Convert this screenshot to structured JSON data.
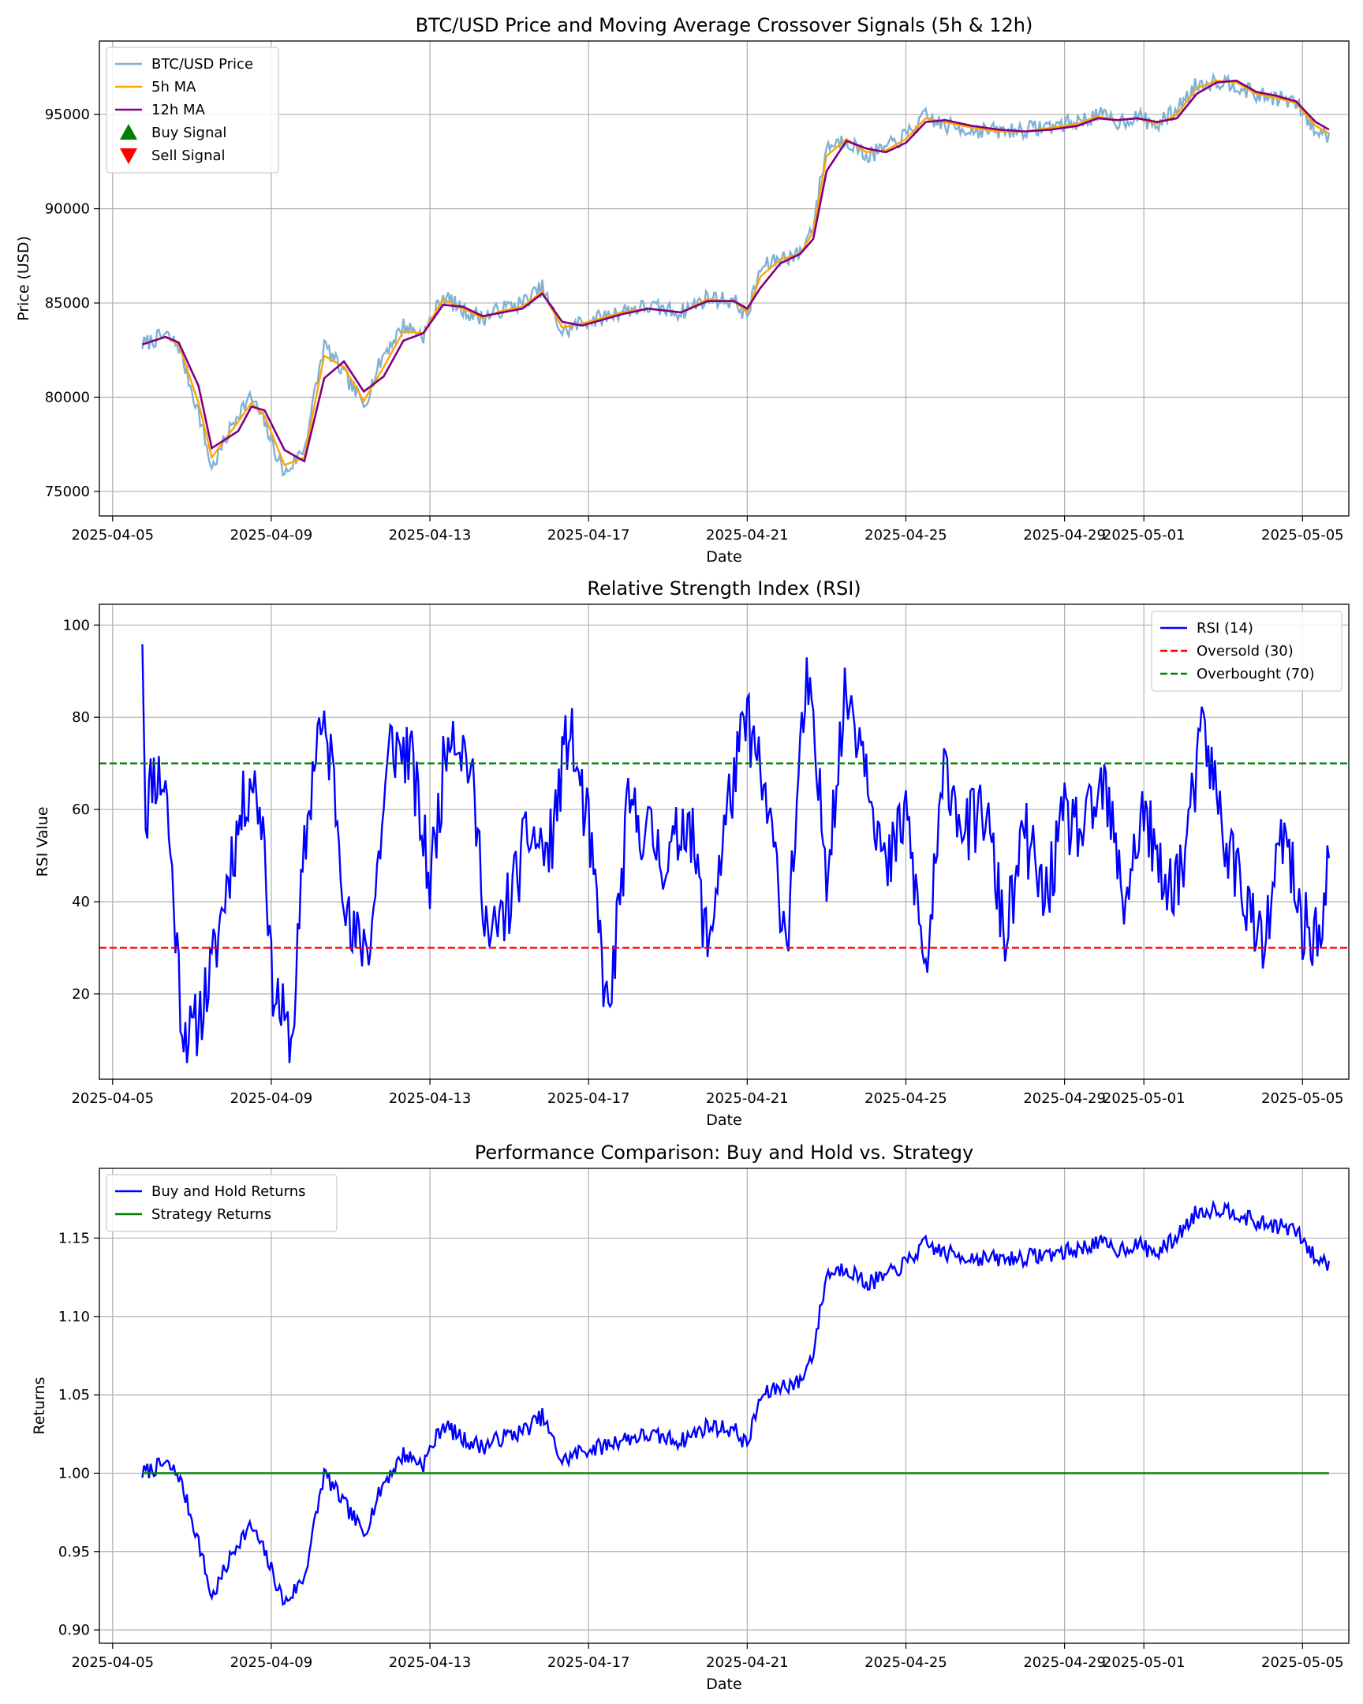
{
  "figure": {
    "background": "#ffffff"
  },
  "chart_data": [
    {
      "type": "line",
      "title": "BTC/USD Price and Moving Average Crossover Signals (5h & 12h)",
      "xlabel": "Date",
      "ylabel": "Price (USD)",
      "xlim": [
        "2025-04-04T16:00",
        "2025-05-06T04:00"
      ],
      "ylim": [
        73700,
        98900
      ],
      "grid": true,
      "legend_position": "upper-left",
      "xticks": [
        "2025-04-05",
        "2025-04-09",
        "2025-04-13",
        "2025-04-17",
        "2025-04-21",
        "2025-04-25",
        "2025-04-29",
        "2025-05-01",
        "2025-05-05"
      ],
      "yticks": [
        75000,
        80000,
        85000,
        90000,
        95000
      ],
      "keypoints_x": [
        "2025-04-05T18:00",
        "2025-04-06T08:00",
        "2025-04-06T16:00",
        "2025-04-07T04:00",
        "2025-04-07T12:00",
        "2025-04-08T04:00",
        "2025-04-08T12:00",
        "2025-04-08T20:00",
        "2025-04-09T08:00",
        "2025-04-09T20:00",
        "2025-04-10T08:00",
        "2025-04-10T20:00",
        "2025-04-11T08:00",
        "2025-04-11T20:00",
        "2025-04-12T08:00",
        "2025-04-12T20:00",
        "2025-04-13T08:00",
        "2025-04-13T20:00",
        "2025-04-14T08:00",
        "2025-04-14T20:00",
        "2025-04-15T08:00",
        "2025-04-15T20:00",
        "2025-04-16T08:00",
        "2025-04-16T20:00",
        "2025-04-17T08:00",
        "2025-04-17T20:00",
        "2025-04-18T12:00",
        "2025-04-19T08:00",
        "2025-04-20T00:00",
        "2025-04-20T16:00",
        "2025-04-21T00:00",
        "2025-04-21T08:00",
        "2025-04-21T20:00",
        "2025-04-22T08:00",
        "2025-04-22T16:00",
        "2025-04-23T00:00",
        "2025-04-23T12:00",
        "2025-04-24T00:00",
        "2025-04-24T12:00",
        "2025-04-25T00:00",
        "2025-04-25T12:00",
        "2025-04-26T00:00",
        "2025-04-26T16:00",
        "2025-04-27T08:00",
        "2025-04-28T00:00",
        "2025-04-28T16:00",
        "2025-04-29T08:00",
        "2025-04-29T20:00",
        "2025-04-30T08:00",
        "2025-04-30T20:00",
        "2025-05-01T08:00",
        "2025-05-01T20:00",
        "2025-05-02T08:00",
        "2025-05-02T20:00",
        "2025-05-03T08:00",
        "2025-05-03T20:00",
        "2025-05-04T08:00",
        "2025-05-04T20:00",
        "2025-05-05T08:00",
        "2025-05-05T16:00"
      ],
      "keypoints_price": [
        82800,
        83300,
        82700,
        79200,
        76200,
        79200,
        80000,
        78600,
        75900,
        77300,
        82800,
        81200,
        79600,
        82300,
        83800,
        83300,
        85400,
        84600,
        84200,
        84700,
        85000,
        85800,
        83400,
        84000,
        84200,
        84600,
        84800,
        84500,
        85300,
        85100,
        84300,
        86800,
        87400,
        87600,
        89200,
        93300,
        93700,
        92800,
        93200,
        93900,
        94900,
        94400,
        94200,
        94100,
        94200,
        94400,
        94600,
        95000,
        94600,
        94900,
        94400,
        95300,
        96600,
        96800,
        96600,
        96000,
        95900,
        95600,
        94100,
        93900
      ],
      "keypoints_ma5": [
        82800,
        83200,
        82800,
        79700,
        76800,
        78700,
        79700,
        79000,
        76400,
        76800,
        82200,
        81600,
        79800,
        81600,
        83500,
        83400,
        85200,
        84700,
        84200,
        84600,
        84800,
        85600,
        83700,
        83900,
        84200,
        84500,
        84700,
        84500,
        85200,
        85100,
        84500,
        86400,
        87300,
        87600,
        88800,
        92800,
        93700,
        93000,
        93100,
        93700,
        94800,
        94600,
        94300,
        94100,
        94100,
        94300,
        94500,
        94900,
        94700,
        94800,
        94500,
        95000,
        96400,
        96800,
        96700,
        96100,
        95900,
        95600,
        94400,
        94000
      ],
      "keypoints_ma12": [
        82800,
        83200,
        82900,
        80600,
        77300,
        78200,
        79500,
        79300,
        77200,
        76600,
        81000,
        81900,
        80300,
        81100,
        83000,
        83400,
        84900,
        84800,
        84300,
        84500,
        84700,
        85500,
        84000,
        83800,
        84100,
        84400,
        84700,
        84500,
        85100,
        85100,
        84700,
        85800,
        87100,
        87600,
        88400,
        92000,
        93600,
        93200,
        93000,
        93500,
        94600,
        94700,
        94400,
        94200,
        94100,
        94200,
        94400,
        94800,
        94700,
        94800,
        94600,
        94800,
        96100,
        96700,
        96800,
        96200,
        96000,
        95700,
        94600,
        94200
      ],
      "series": [
        {
          "name": "BTC/USD Price",
          "color": "#7fb2d5",
          "role": "price"
        },
        {
          "name": "5h MA",
          "color": "#ffa500",
          "role": "ma5"
        },
        {
          "name": "12h MA",
          "color": "#800080",
          "role": "ma12"
        },
        {
          "name": "Buy Signal",
          "color": "#008000",
          "role": "marker-up",
          "points": []
        },
        {
          "name": "Sell Signal",
          "color": "#ff0000",
          "role": "marker-down",
          "points": []
        }
      ]
    },
    {
      "type": "line",
      "title": "Relative Strength Index (RSI)",
      "xlabel": "Date",
      "ylabel": "RSI Value",
      "xlim": [
        "2025-04-04T16:00",
        "2025-05-06T04:00"
      ],
      "ylim": [
        1.5,
        104.5
      ],
      "grid": true,
      "legend_position": "upper-right",
      "xticks": [
        "2025-04-05",
        "2025-04-09",
        "2025-04-13",
        "2025-04-17",
        "2025-04-21",
        "2025-04-25",
        "2025-04-29",
        "2025-05-01",
        "2025-05-05"
      ],
      "yticks": [
        20,
        40,
        60,
        80,
        100
      ],
      "keypoints_x": [
        "2025-04-05T18:00",
        "2025-04-05T20:00",
        "2025-04-06T00:00",
        "2025-04-06T08:00",
        "2025-04-06T18:00",
        "2025-04-07T00:00",
        "2025-04-07T12:00",
        "2025-04-08T00:00",
        "2025-04-08T12:00",
        "2025-04-08T20:00",
        "2025-04-09T00:00",
        "2025-04-09T12:00",
        "2025-04-09T20:00",
        "2025-04-10T04:00",
        "2025-04-10T12:00",
        "2025-04-11T00:00",
        "2025-04-11T12:00",
        "2025-04-12T00:00",
        "2025-04-12T12:00",
        "2025-04-13T00:00",
        "2025-04-13T12:00",
        "2025-04-14T00:00",
        "2025-04-14T12:00",
        "2025-04-15T00:00",
        "2025-04-15T12:00",
        "2025-04-16T00:00",
        "2025-04-16T12:00",
        "2025-04-17T00:00",
        "2025-04-17T12:00",
        "2025-04-18T00:00",
        "2025-04-18T12:00",
        "2025-04-19T00:00",
        "2025-04-19T12:00",
        "2025-04-20T00:00",
        "2025-04-20T12:00",
        "2025-04-21T00:00",
        "2025-04-21T12:00",
        "2025-04-22T00:00",
        "2025-04-22T12:00",
        "2025-04-23T00:00",
        "2025-04-23T12:00",
        "2025-04-24T00:00",
        "2025-04-24T12:00",
        "2025-04-25T00:00",
        "2025-04-25T12:00",
        "2025-04-26T00:00",
        "2025-04-26T12:00",
        "2025-04-27T00:00",
        "2025-04-27T12:00",
        "2025-04-28T00:00",
        "2025-04-28T12:00",
        "2025-04-29T00:00",
        "2025-04-29T12:00",
        "2025-04-30T00:00",
        "2025-04-30T12:00",
        "2025-05-01T00:00",
        "2025-05-01T12:00",
        "2025-05-02T00:00",
        "2025-05-02T12:00",
        "2025-05-03T00:00",
        "2025-05-03T12:00",
        "2025-05-04T00:00",
        "2025-05-04T12:00",
        "2025-05-05T00:00",
        "2025-05-05T12:00",
        "2025-05-05T16:00"
      ],
      "keypoints_rsi": [
        100,
        58,
        68,
        66,
        14,
        10,
        25,
        50,
        68,
        55,
        24,
        8,
        50,
        78,
        72,
        31,
        32,
        74,
        72,
        44,
        80,
        70,
        30,
        40,
        55,
        50,
        78,
        55,
        14,
        60,
        55,
        48,
        60,
        30,
        60,
        80,
        60,
        32,
        88,
        48,
        86,
        72,
        45,
        60,
        24,
        70,
        55,
        60,
        32,
        55,
        40,
        58,
        55,
        65,
        40,
        60,
        42,
        48,
        78,
        55,
        43,
        28,
        55,
        35,
        32,
        50
      ],
      "hlines": [
        {
          "name": "Oversold (30)",
          "value": 30,
          "color": "#ff0000"
        },
        {
          "name": "Overbought (70)",
          "value": 70,
          "color": "#008000"
        }
      ],
      "series": [
        {
          "name": "RSI (14)",
          "color": "#0000ff"
        }
      ]
    },
    {
      "type": "line",
      "title": "Performance Comparison: Buy and Hold vs. Strategy",
      "xlabel": "Date",
      "ylabel": "Returns",
      "xlim": [
        "2025-04-04T16:00",
        "2025-05-06T04:00"
      ],
      "ylim": [
        0.8915,
        1.1945
      ],
      "grid": true,
      "legend_position": "upper-left",
      "xticks": [
        "2025-04-05",
        "2025-04-09",
        "2025-04-13",
        "2025-04-17",
        "2025-04-21",
        "2025-04-25",
        "2025-04-29",
        "2025-05-01",
        "2025-05-05"
      ],
      "yticks": [
        0.9,
        0.95,
        1.0,
        1.05,
        1.1,
        1.15
      ],
      "ytick_labels": [
        "0.90",
        "0.95",
        "1.00",
        "1.05",
        "1.10",
        "1.15"
      ],
      "series": [
        {
          "name": "Buy and Hold Returns",
          "color": "#0000ff",
          "source": "price",
          "base": 82800
        },
        {
          "name": "Strategy Returns",
          "color": "#008000",
          "constant": 1.0
        }
      ]
    }
  ]
}
